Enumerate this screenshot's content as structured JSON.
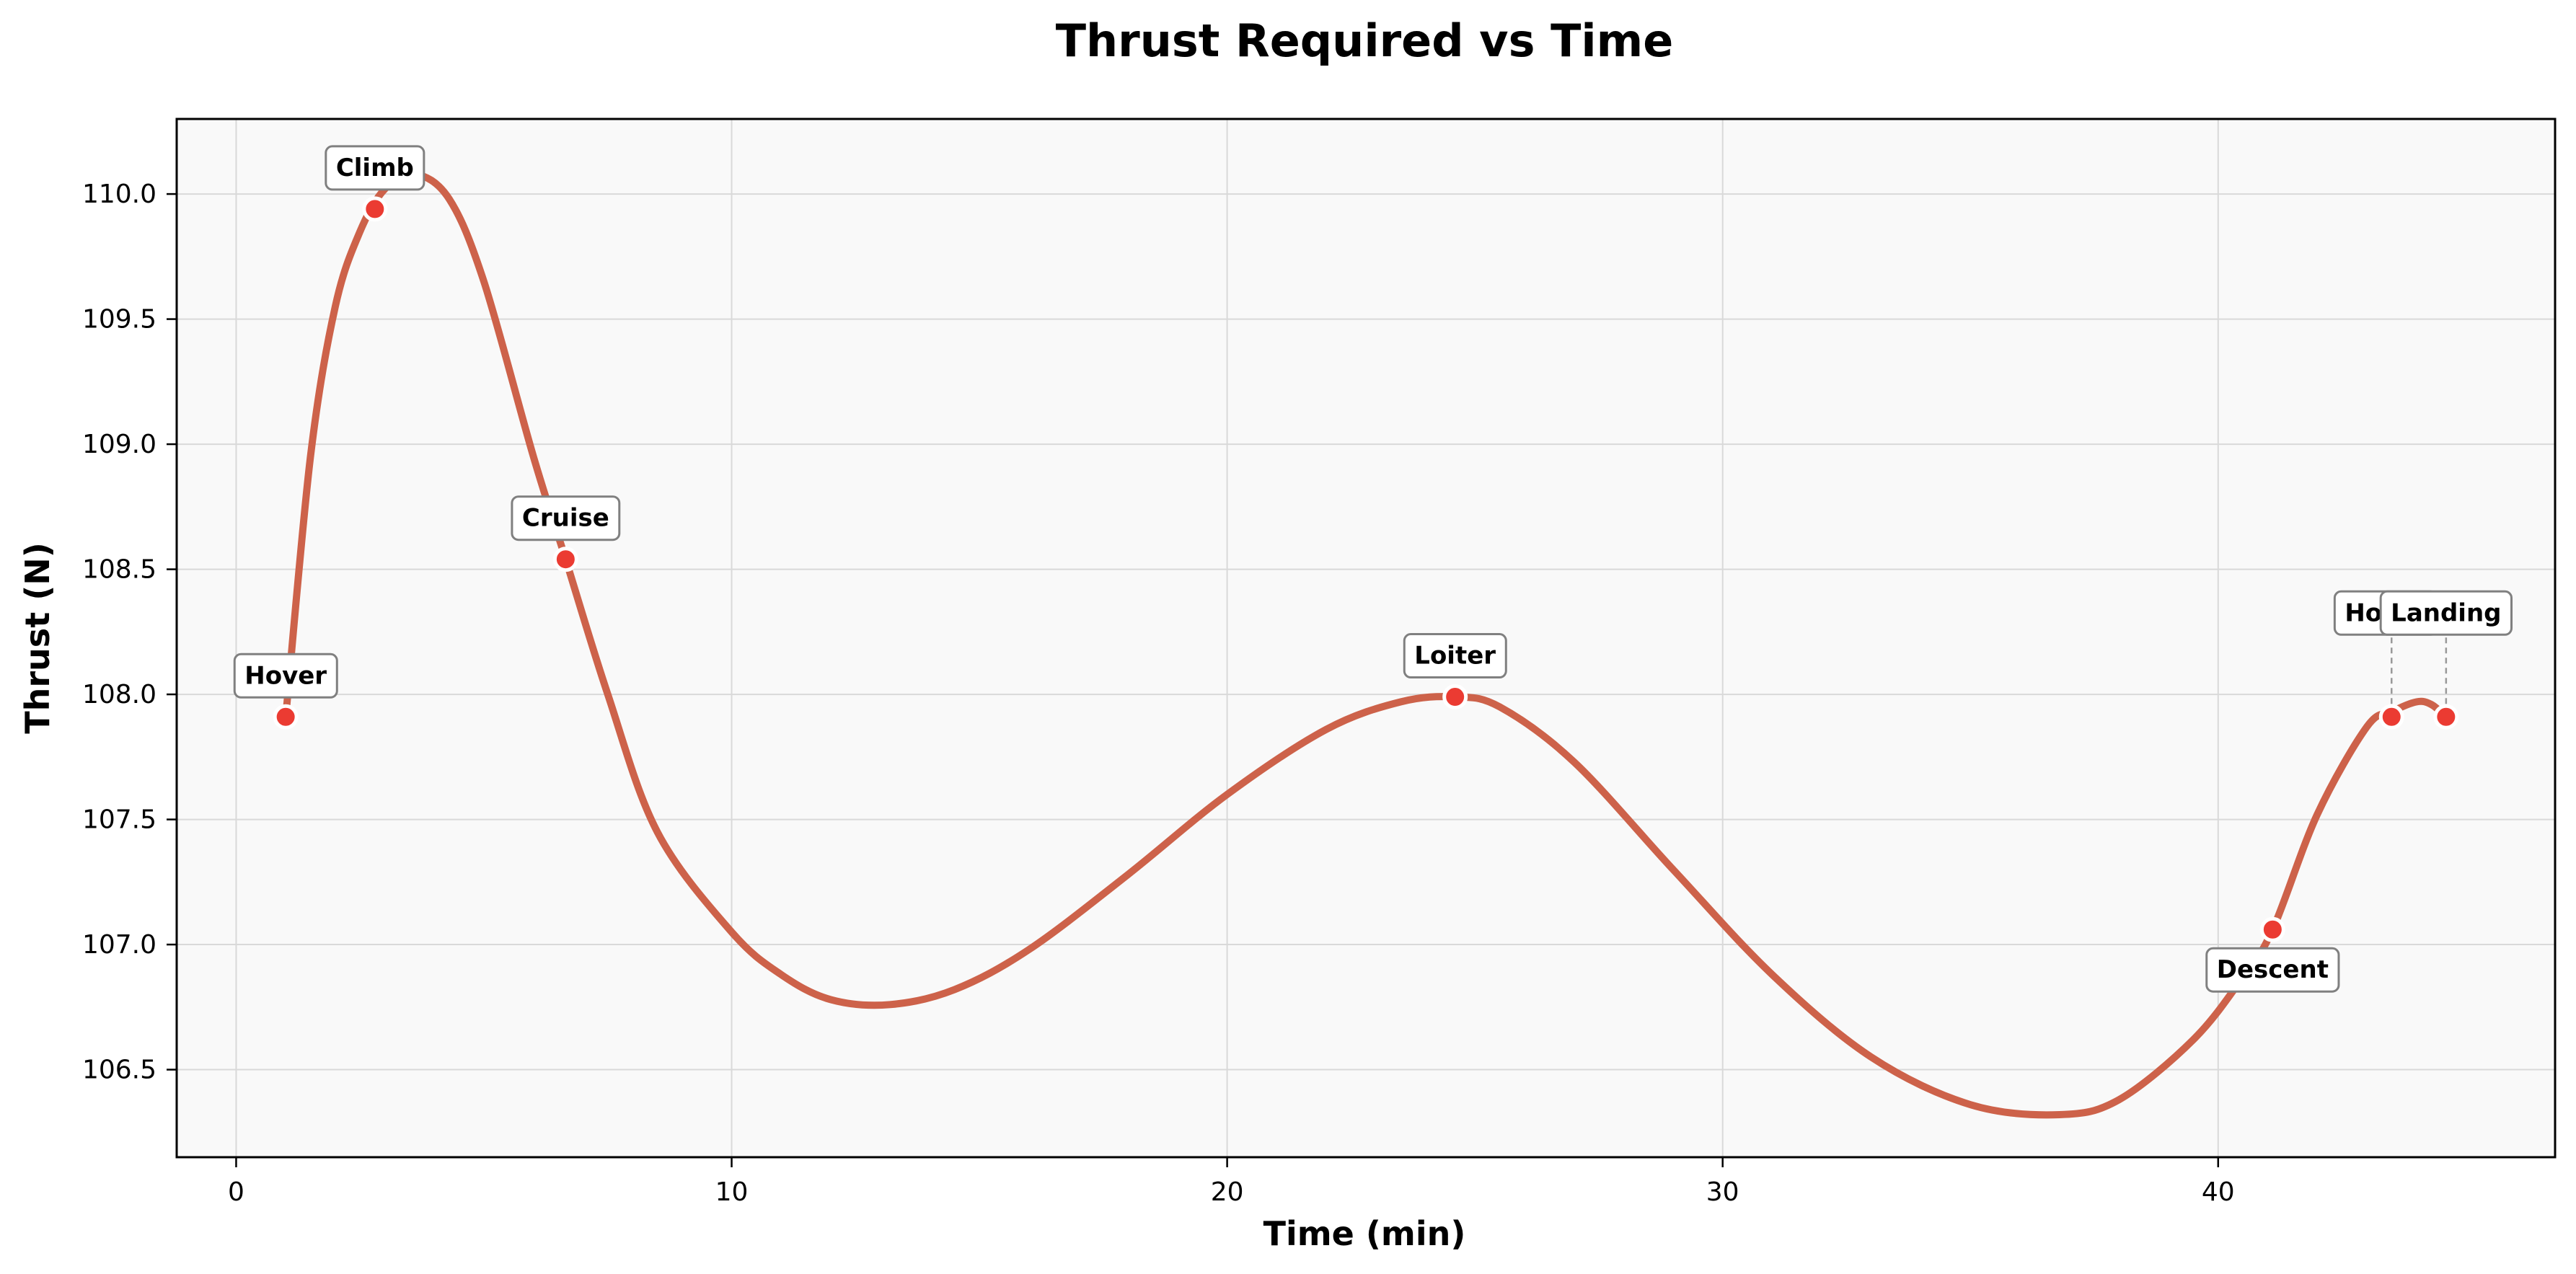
{
  "chart_data": {
    "type": "line",
    "title": "Thrust Required vs Time",
    "xlabel": "Time (min)",
    "ylabel": "Thrust (N)",
    "xlim": [
      -1.2,
      46.8
    ],
    "ylim": [
      106.15,
      110.3
    ],
    "xticks": [
      0,
      10,
      20,
      30,
      40
    ],
    "yticks": [
      106.5,
      107.0,
      107.5,
      108.0,
      108.5,
      109.0,
      109.5,
      110.0
    ],
    "ytick_format": 1,
    "grid": true,
    "line_color": "#cd624a",
    "marker_color": "#eb3b32",
    "plot_background": "#f9f9f9",
    "curve": {
      "x": [
        1.0,
        1.5,
        2.0,
        2.5,
        3.0,
        3.6,
        4.3,
        5.0,
        6.0,
        6.65,
        7.5,
        8.5,
        10.0,
        11.0,
        12.0,
        13.2,
        14.5,
        16.0,
        18.0,
        20.0,
        22.0,
        23.5,
        24.6,
        25.5,
        27.0,
        29.0,
        31.0,
        33.0,
        35.0,
        36.8,
        38.0,
        39.5,
        40.5,
        41.1,
        42.0,
        43.0,
        43.5,
        44.0,
        44.3,
        44.6
      ],
      "y": [
        107.91,
        108.95,
        109.55,
        109.85,
        110.02,
        110.08,
        109.98,
        109.65,
        108.95,
        108.54,
        108.0,
        107.45,
        107.05,
        106.88,
        106.78,
        106.76,
        106.82,
        106.98,
        107.28,
        107.6,
        107.86,
        107.97,
        107.99,
        107.95,
        107.73,
        107.3,
        106.88,
        106.55,
        106.36,
        106.32,
        106.38,
        106.62,
        106.87,
        107.06,
        107.52,
        107.87,
        107.93,
        107.97,
        107.96,
        107.91
      ]
    },
    "points": [
      {
        "label": "Hover",
        "x": 1.0,
        "y": 107.91
      },
      {
        "label": "Climb",
        "x": 2.8,
        "y": 109.94
      },
      {
        "label": "Cruise",
        "x": 6.65,
        "y": 108.54
      },
      {
        "label": "Loiter",
        "x": 24.6,
        "y": 107.99
      },
      {
        "label": "Descent",
        "x": 41.1,
        "y": 107.06
      },
      {
        "label": "Hover",
        "x": 43.5,
        "y": 107.91
      },
      {
        "label": "Landing",
        "x": 44.6,
        "y": 107.91
      }
    ]
  }
}
